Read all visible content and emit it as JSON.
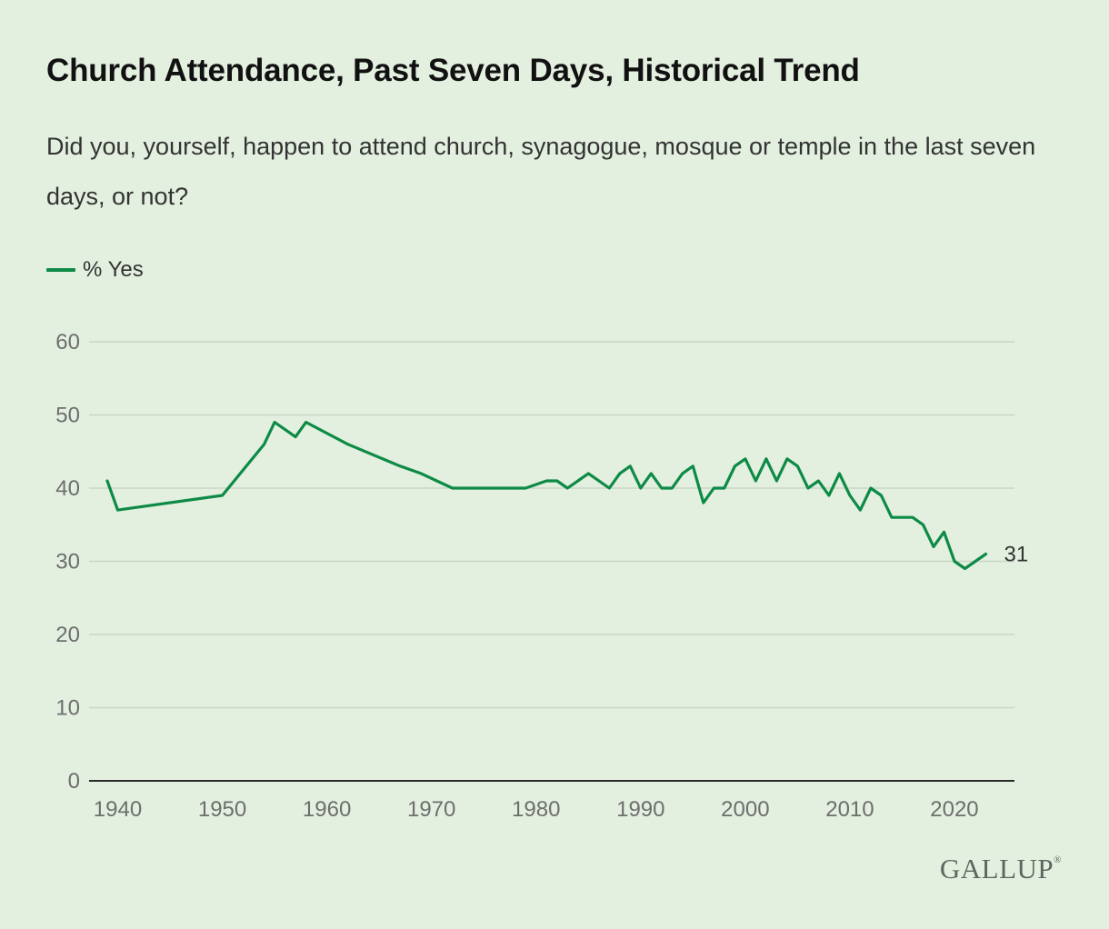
{
  "chart_data": {
    "type": "line",
    "title": "Church Attendance, Past Seven Days, Historical Trend",
    "subtitle": "Did you, yourself, happen to attend church, synagogue, mosque or temple in the last seven days, or not?",
    "ylim": [
      0,
      60
    ],
    "xlim": [
      1939,
      2024
    ],
    "y_ticks": [
      0,
      10,
      20,
      30,
      40,
      50,
      60
    ],
    "x_ticks": [
      1940,
      1950,
      1960,
      1970,
      1980,
      1990,
      2000,
      2010,
      2020
    ],
    "grid": true,
    "legend_position": "top-left",
    "end_label": "31",
    "colors": {
      "line": "#0e8a47",
      "background": "#e3f0df",
      "grid": "#c9d6c5",
      "axis": "#2a2a2a"
    },
    "series": [
      {
        "name": "% Yes",
        "points": [
          [
            1939,
            41
          ],
          [
            1940,
            37
          ],
          [
            1950,
            39
          ],
          [
            1954,
            46
          ],
          [
            1955,
            49
          ],
          [
            1957,
            47
          ],
          [
            1958,
            49
          ],
          [
            1962,
            46
          ],
          [
            1967,
            43
          ],
          [
            1969,
            42
          ],
          [
            1972,
            40
          ],
          [
            1979,
            40
          ],
          [
            1981,
            41
          ],
          [
            1982,
            41
          ],
          [
            1983,
            40
          ],
          [
            1985,
            42
          ],
          [
            1987,
            40
          ],
          [
            1988,
            42
          ],
          [
            1989,
            43
          ],
          [
            1990,
            40
          ],
          [
            1991,
            42
          ],
          [
            1992,
            40
          ],
          [
            1993,
            40
          ],
          [
            1994,
            42
          ],
          [
            1995,
            43
          ],
          [
            1996,
            38
          ],
          [
            1997,
            40
          ],
          [
            1998,
            40
          ],
          [
            1999,
            43
          ],
          [
            2000,
            44
          ],
          [
            2001,
            41
          ],
          [
            2002,
            44
          ],
          [
            2003,
            41
          ],
          [
            2004,
            44
          ],
          [
            2005,
            43
          ],
          [
            2006,
            40
          ],
          [
            2007,
            41
          ],
          [
            2008,
            39
          ],
          [
            2009,
            42
          ],
          [
            2010,
            39
          ],
          [
            2011,
            37
          ],
          [
            2012,
            40
          ],
          [
            2013,
            39
          ],
          [
            2014,
            36
          ],
          [
            2016,
            36
          ],
          [
            2017,
            35
          ],
          [
            2018,
            32
          ],
          [
            2019,
            34
          ],
          [
            2020,
            30
          ],
          [
            2021,
            29
          ],
          [
            2023,
            31
          ]
        ]
      }
    ]
  },
  "brand": {
    "logo": "GALLUP",
    "registered": "®"
  }
}
